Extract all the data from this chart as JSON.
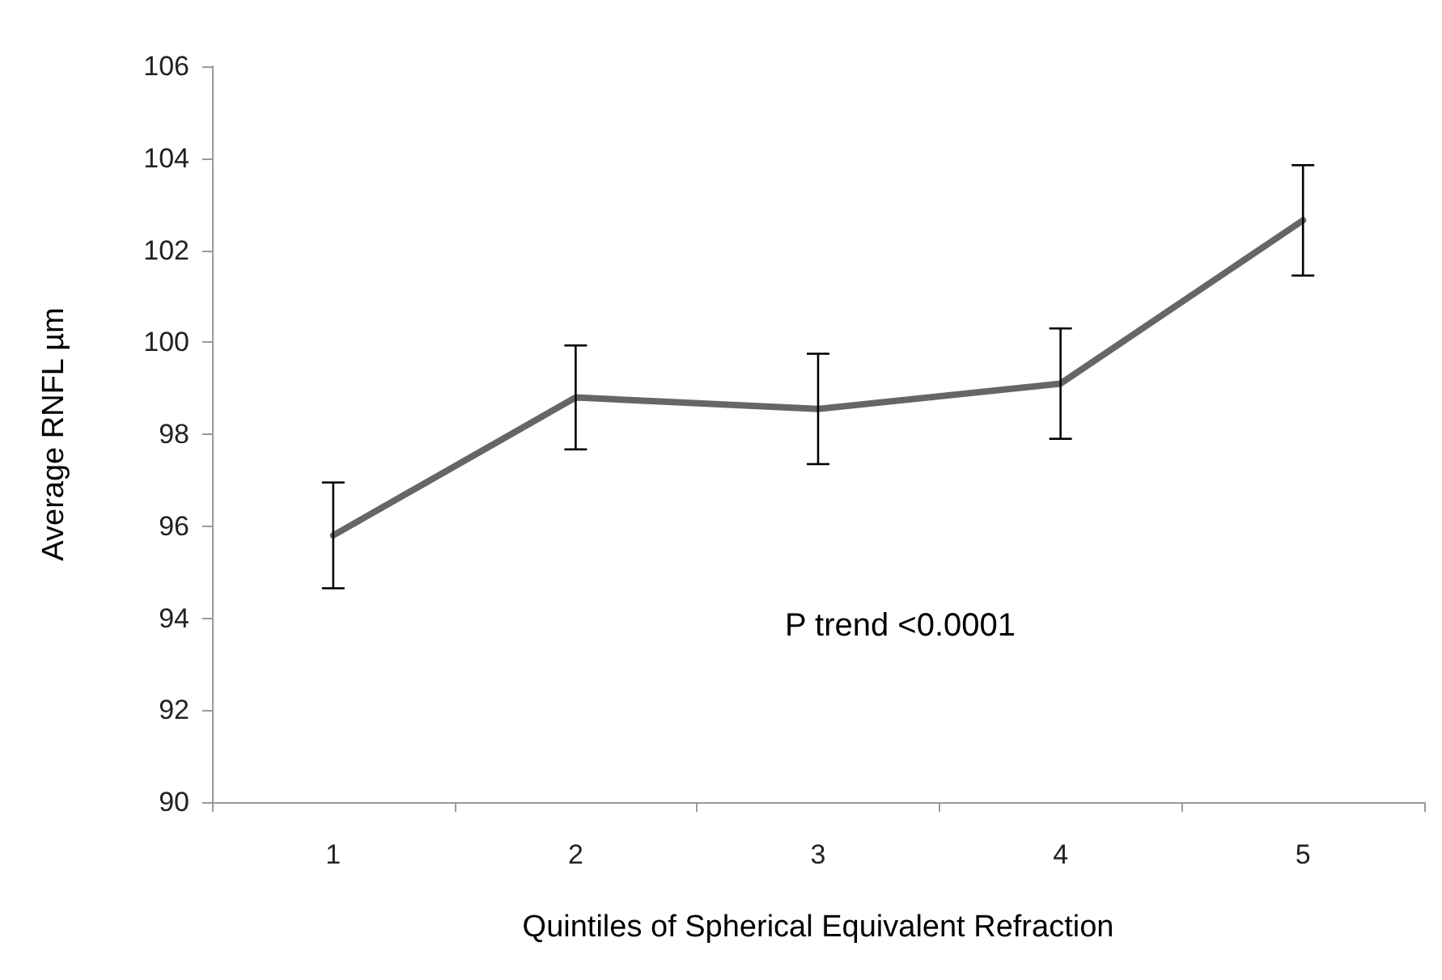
{
  "chart_data": {
    "type": "line",
    "xlabel": "Quintiles of Spherical Equivalent Refraction",
    "ylabel": "Average RNFL µm",
    "categories": [
      "1",
      "2",
      "3",
      "4",
      "5"
    ],
    "series": [
      {
        "color": "#666666",
        "values": [
          95.8,
          98.8,
          98.55,
          99.1,
          102.65
        ],
        "errors": [
          1.15,
          1.13,
          1.2,
          1.2,
          1.2
        ]
      }
    ],
    "ylim": [
      90,
      106
    ],
    "yticks": [
      90,
      92,
      94,
      96,
      98,
      100,
      102,
      104,
      106
    ],
    "annotations": [
      "P trend <0.0001"
    ],
    "grid": false,
    "marker": "none",
    "line_style": "solid"
  }
}
